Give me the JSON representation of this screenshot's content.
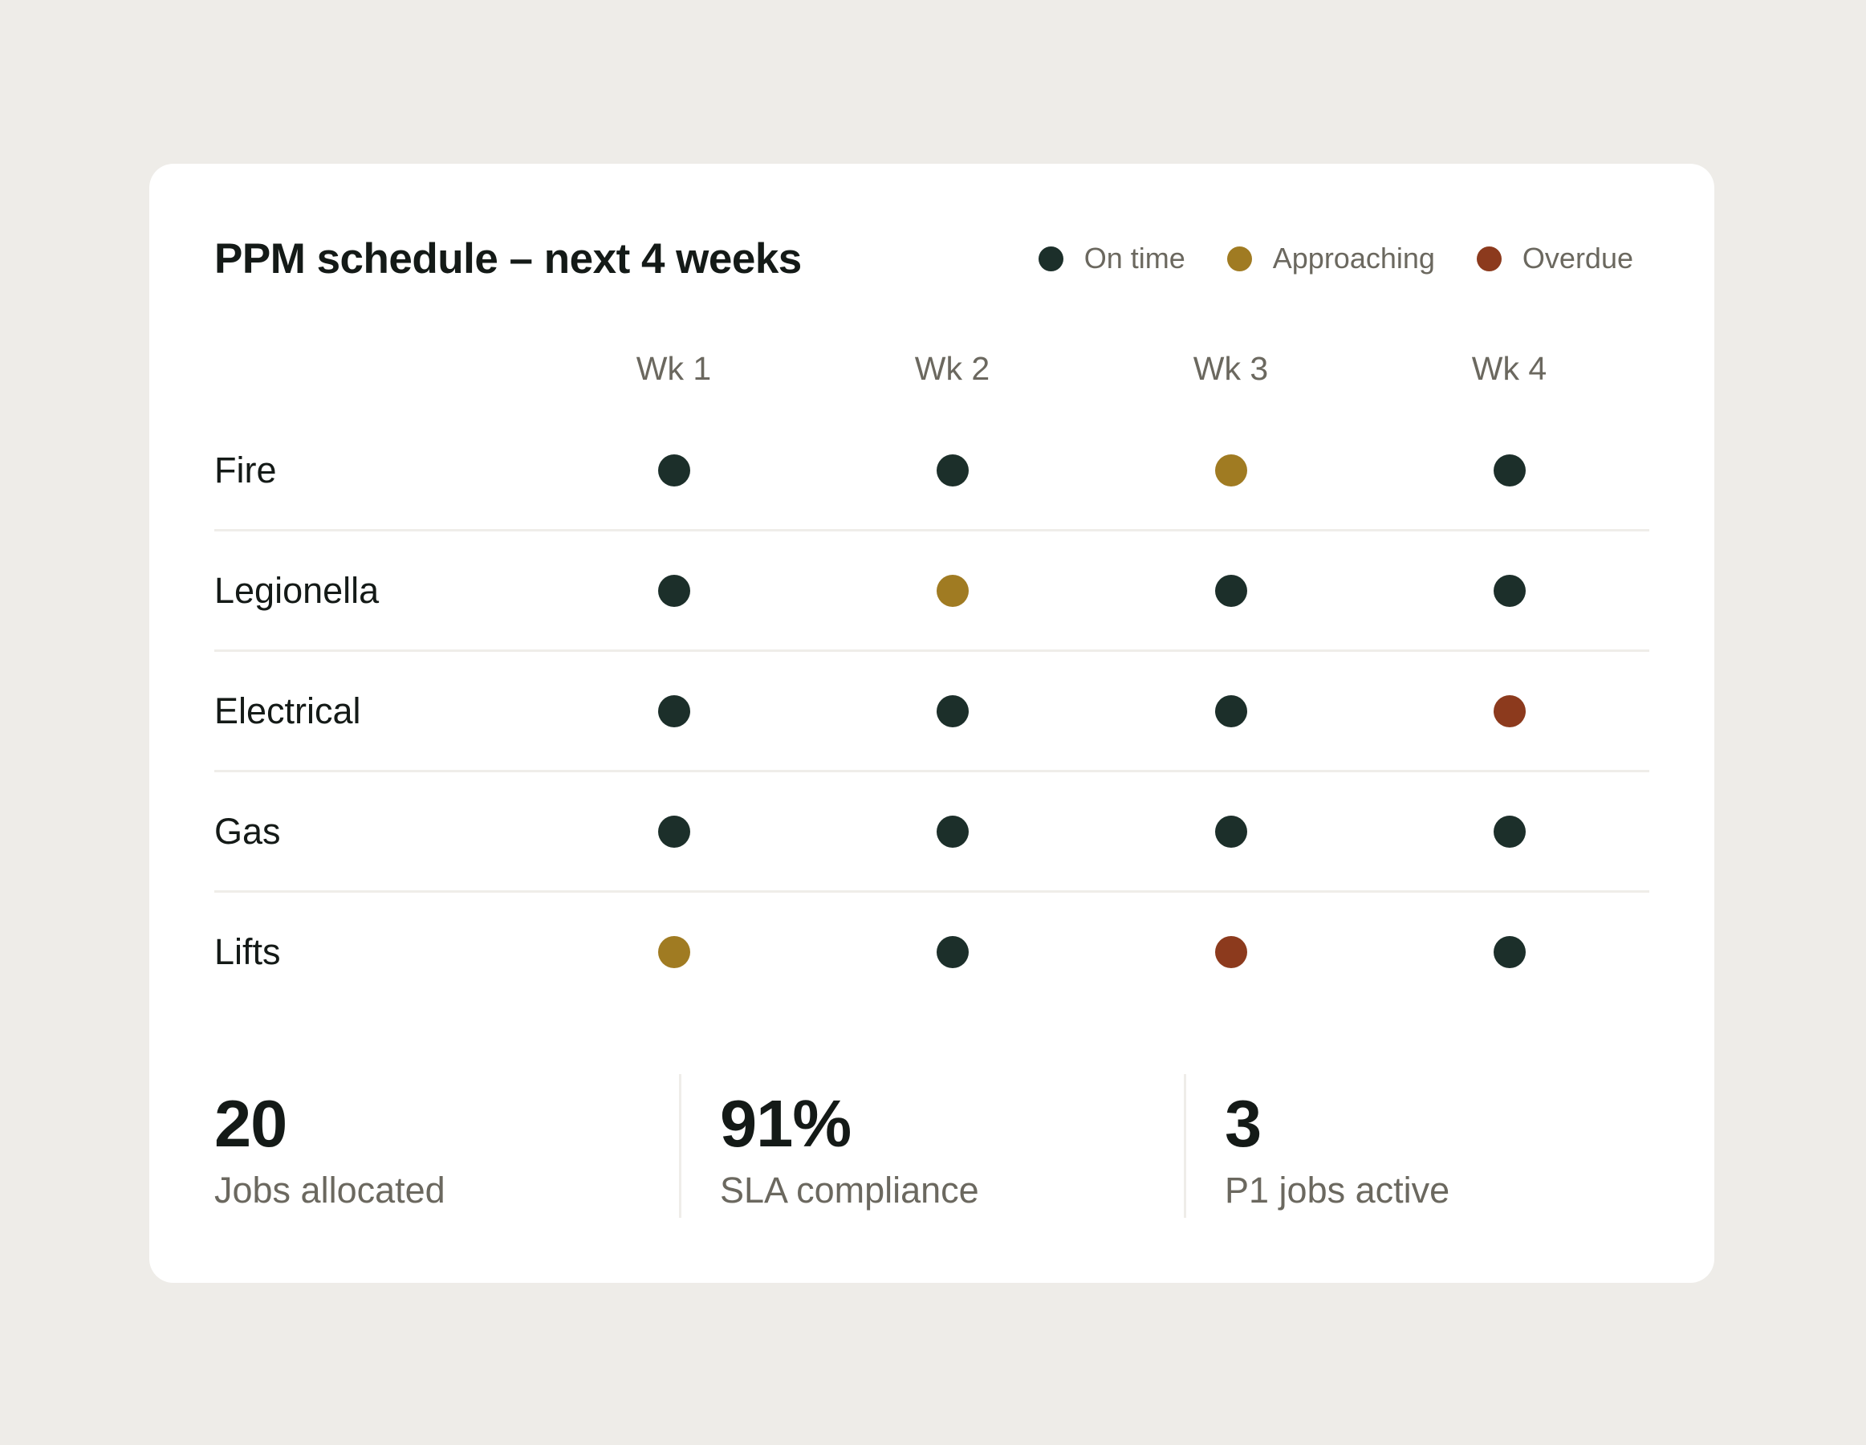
{
  "title": "PPM schedule – next 4 weeks",
  "colors": {
    "on_time": "#1c2f2a",
    "approaching": "#a07b22",
    "overdue": "#8c3a1d",
    "background": "#eeece8",
    "card": "#ffffff"
  },
  "legend": [
    {
      "key": "on_time",
      "label": "On time"
    },
    {
      "key": "approaching",
      "label": "Approaching"
    },
    {
      "key": "overdue",
      "label": "Overdue"
    }
  ],
  "weeks": [
    "Wk 1",
    "Wk 2",
    "Wk 3",
    "Wk 4"
  ],
  "rows": [
    {
      "label": "Fire",
      "status": [
        "on_time",
        "on_time",
        "approaching",
        "on_time"
      ]
    },
    {
      "label": "Legionella",
      "status": [
        "on_time",
        "approaching",
        "on_time",
        "on_time"
      ]
    },
    {
      "label": "Electrical",
      "status": [
        "on_time",
        "on_time",
        "on_time",
        "overdue"
      ]
    },
    {
      "label": "Gas",
      "status": [
        "on_time",
        "on_time",
        "on_time",
        "on_time"
      ]
    },
    {
      "label": "Lifts",
      "status": [
        "approaching",
        "on_time",
        "overdue",
        "on_time"
      ]
    }
  ],
  "stats": [
    {
      "value": "20",
      "label": "Jobs allocated"
    },
    {
      "value": "91%",
      "label": "SLA compliance"
    },
    {
      "value": "3",
      "label": "P1 jobs active"
    }
  ]
}
